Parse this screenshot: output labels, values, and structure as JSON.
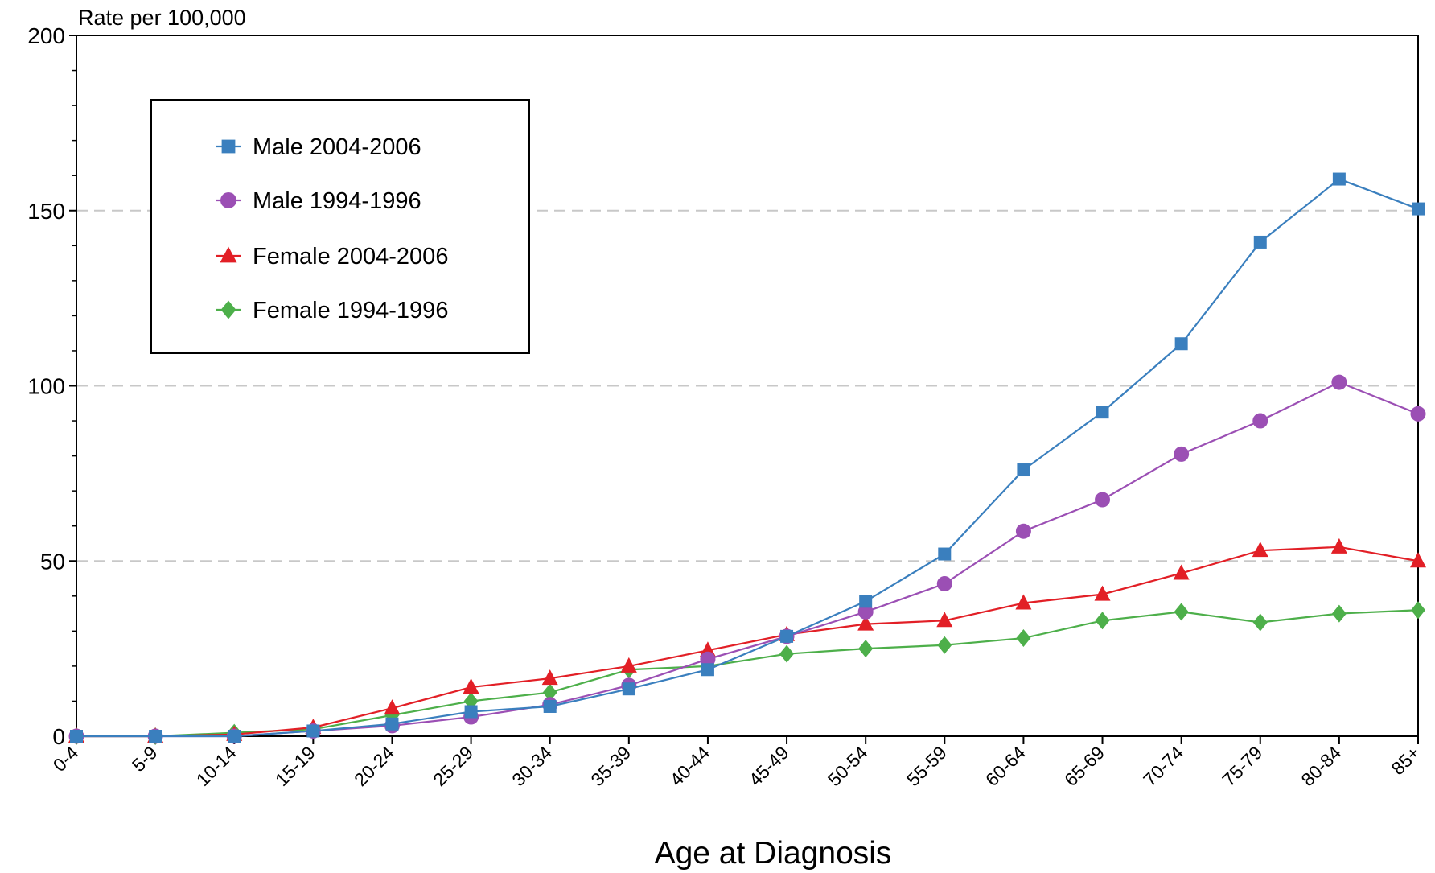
{
  "chart_data": {
    "type": "line",
    "ylabel": "Rate per 100,000",
    "xlabel": "Age at Diagnosis",
    "categories": [
      "0-4",
      "5-9",
      "10-14",
      "15-19",
      "20-24",
      "25-29",
      "30-34",
      "35-39",
      "40-44",
      "45-49",
      "50-54",
      "55-59",
      "60-64",
      "65-69",
      "70-74",
      "75-79",
      "80-84",
      "85+"
    ],
    "ylim": [
      0,
      200
    ],
    "yticks": [
      0,
      50,
      100,
      150,
      200
    ],
    "grid": "horizontal dashed at 50, 100, 150",
    "legend_position": "top-left",
    "series": [
      {
        "name": "Male 2004-2006",
        "color": "#3a7fbe",
        "marker": "square",
        "values": [
          0,
          0,
          0,
          1.5,
          3.5,
          7,
          8.5,
          13.5,
          19,
          28.5,
          38.5,
          52,
          76,
          92.5,
          112,
          141,
          159,
          150.5
        ]
      },
      {
        "name": "Male 1994-1996",
        "color": "#9b4fb4",
        "marker": "circle",
        "values": [
          0,
          0,
          0,
          1.5,
          3,
          5.5,
          9,
          14.5,
          22,
          28.5,
          35.5,
          43.5,
          58.5,
          67.5,
          80.5,
          90,
          101,
          92
        ]
      },
      {
        "name": "Female 2004-2006",
        "color": "#e21f26",
        "marker": "triangle",
        "values": [
          0,
          0,
          0.5,
          2.5,
          8,
          14,
          16.5,
          20,
          24.5,
          29,
          32,
          33,
          38,
          40.5,
          46.5,
          53,
          54,
          50
        ]
      },
      {
        "name": "Female 1994-1996",
        "color": "#4daf4a",
        "marker": "diamond",
        "values": [
          0,
          0,
          1,
          2,
          6,
          10,
          12.5,
          19,
          20,
          23.5,
          25,
          26,
          28,
          33,
          35.5,
          32.5,
          35,
          36
        ]
      }
    ]
  }
}
